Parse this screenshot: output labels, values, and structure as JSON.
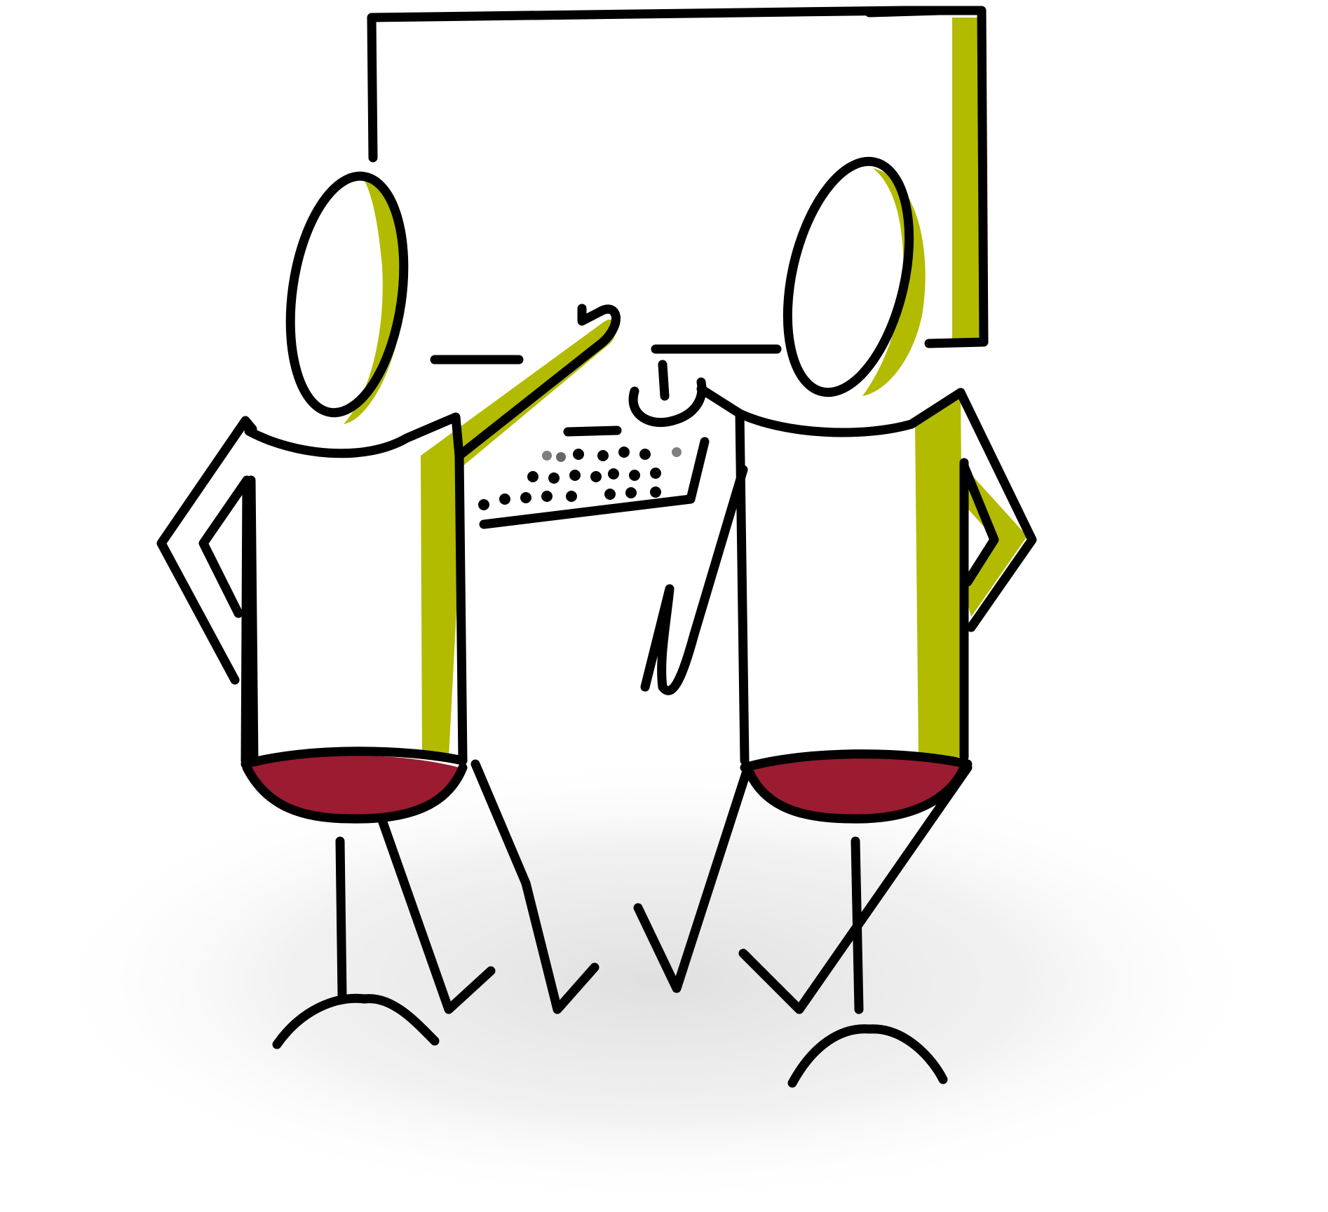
{
  "scene": {
    "description_label": "",
    "colors": {
      "ink": "#000000",
      "accent_green": "#b2bb00",
      "seat_red": "#9b1b30",
      "shadow": "#e6e6e6",
      "background": "#ffffff"
    },
    "icons": {
      "monitor": "monitor-icon",
      "keyboard": "keyboard-icon",
      "mouse": "mouse-icon",
      "person": "person-icon",
      "stool": "stool-icon"
    }
  }
}
